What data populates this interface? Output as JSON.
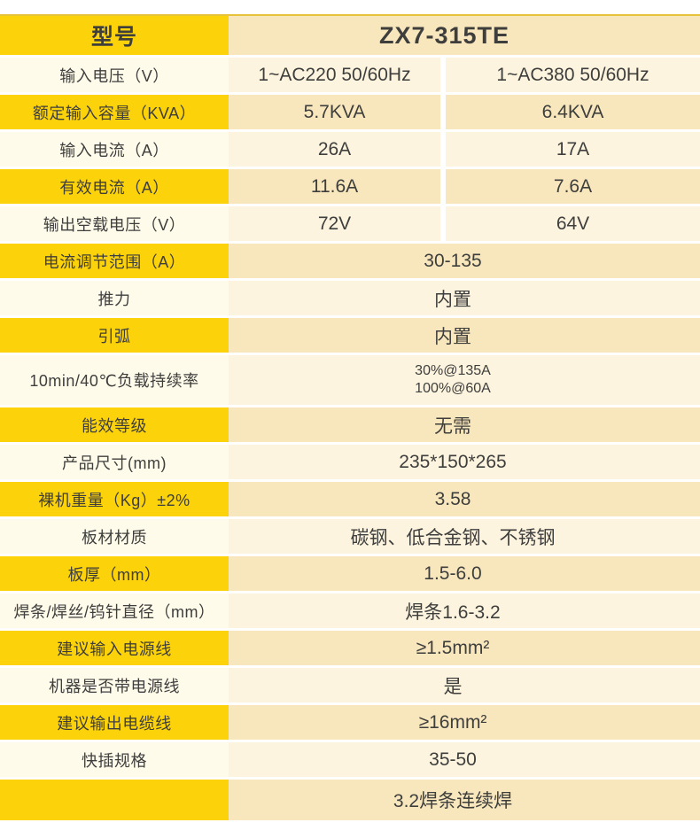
{
  "table": {
    "header": {
      "label": "型号",
      "value": "ZX7-315TE"
    },
    "colors": {
      "yellow": "#FCD30B",
      "label_light": "#FFFBEA",
      "value_dark": "#F8E7BD",
      "value_light": "#FDF4DF",
      "text": "#3E3E3C",
      "top_border": "#E7C33B",
      "page_bg": "#FFFFFF"
    },
    "rows": [
      {
        "label": "输入电压（V）",
        "style": "light",
        "values": [
          "1~AC220 50/60Hz",
          "1~AC380 50/60Hz"
        ]
      },
      {
        "label": "额定输入容量（KVA）",
        "style": "yellow",
        "values": [
          "5.7KVA",
          "6.4KVA"
        ]
      },
      {
        "label": "输入电流（A）",
        "style": "light",
        "values": [
          "26A",
          "17A"
        ]
      },
      {
        "label": "有效电流（A）",
        "style": "yellow",
        "values": [
          "11.6A",
          "7.6A"
        ]
      },
      {
        "label": "输出空载电压（V）",
        "style": "light",
        "values": [
          "72V",
          "64V"
        ]
      },
      {
        "label": "电流调节范围（A）",
        "style": "yellow",
        "span": "30-135"
      },
      {
        "label": "推力",
        "style": "light",
        "span": "内置"
      },
      {
        "label": "引弧",
        "style": "yellow",
        "span": "内置"
      },
      {
        "label": "10min/40℃负载持续率",
        "style": "light",
        "lines": [
          "30%@135A",
          "100%@60A"
        ]
      },
      {
        "label": "能效等级",
        "style": "yellow",
        "span": "无需"
      },
      {
        "label": "产品尺寸(mm)",
        "style": "light",
        "span": "235*150*265"
      },
      {
        "label": "裸机重量（Kg）±2%",
        "style": "yellow",
        "span": "3.58"
      },
      {
        "label": "板材材质",
        "style": "light",
        "span": "碳钢、低合金钢、不锈钢"
      },
      {
        "label": "板厚（mm）",
        "style": "yellow",
        "span": "1.5-6.0"
      },
      {
        "label": "焊条/焊丝/钨针直径（mm）",
        "style": "light",
        "span": "焊条1.6-3.2"
      },
      {
        "label": "建议输入电源线",
        "style": "yellow",
        "span": "≥1.5mm²"
      },
      {
        "label": "机器是否带电源线",
        "style": "light",
        "span": "是"
      },
      {
        "label": "建议输出电缆线",
        "style": "yellow",
        "span": "≥16mm²"
      },
      {
        "label": "快插规格",
        "style": "light",
        "span": "35-50"
      },
      {
        "label": "",
        "style": "yellow",
        "span": "3.2焊条连续焊",
        "last": true
      }
    ]
  }
}
